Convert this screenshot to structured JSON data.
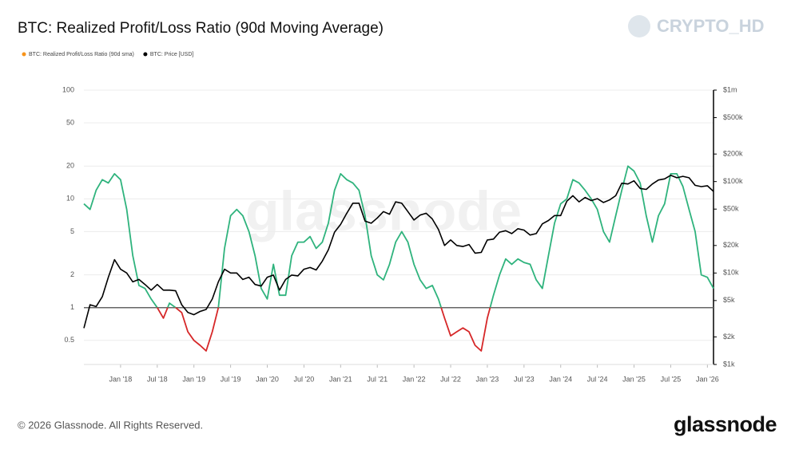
{
  "chart_data": {
    "type": "line",
    "title": "BTC: Realized Profit/Loss Ratio (90d Moving Average)",
    "watermark": "glassnode",
    "channel": "CRYPTO_HD",
    "footer": "© 2026 Glassnode. All Rights Reserved.",
    "logo": "glassnode",
    "log_scale": true,
    "grid": true,
    "threshold": 1,
    "threshold_color": "#666666",
    "xlim": [
      "2017-07",
      "2026-02"
    ],
    "xticks": [
      {
        "value": "2018-01",
        "label": "Jan '18"
      },
      {
        "value": "2018-07",
        "label": "Jul '18"
      },
      {
        "value": "2019-01",
        "label": "Jan '19"
      },
      {
        "value": "2019-07",
        "label": "Jul '19"
      },
      {
        "value": "2020-01",
        "label": "Jan '20"
      },
      {
        "value": "2020-07",
        "label": "Jul '20"
      },
      {
        "value": "2021-01",
        "label": "Jan '21"
      },
      {
        "value": "2021-07",
        "label": "Jul '21"
      },
      {
        "value": "2022-01",
        "label": "Jan '22"
      },
      {
        "value": "2022-07",
        "label": "Jul '22"
      },
      {
        "value": "2023-01",
        "label": "Jan '23"
      },
      {
        "value": "2023-07",
        "label": "Jul '23"
      },
      {
        "value": "2024-01",
        "label": "Jan '24"
      },
      {
        "value": "2024-07",
        "label": "Jul '24"
      },
      {
        "value": "2025-01",
        "label": "Jan '25"
      },
      {
        "value": "2025-07",
        "label": "Jul '25"
      },
      {
        "value": "2026-01",
        "label": "Jan '26"
      }
    ],
    "ylim": [
      0.3,
      100
    ],
    "yticks": [
      100,
      50,
      20,
      10,
      5,
      2,
      1,
      0.5
    ],
    "y2lim": [
      1000,
      1000000
    ],
    "y2ticks": [
      {
        "value": 1000000,
        "label": "$1m"
      },
      {
        "value": 500000,
        "label": "$500k"
      },
      {
        "value": 200000,
        "label": "$200k"
      },
      {
        "value": 100000,
        "label": "$100k"
      },
      {
        "value": 50000,
        "label": "$50k"
      },
      {
        "value": 20000,
        "label": "$20k"
      },
      {
        "value": 10000,
        "label": "$10k"
      },
      {
        "value": 5000,
        "label": "$5k"
      },
      {
        "value": 2000,
        "label": "$2k"
      },
      {
        "value": 1000,
        "label": "$1k"
      }
    ],
    "x": [
      "2017-07",
      "2017-08",
      "2017-09",
      "2017-10",
      "2017-11",
      "2017-12",
      "2018-01",
      "2018-02",
      "2018-03",
      "2018-04",
      "2018-05",
      "2018-06",
      "2018-07",
      "2018-08",
      "2018-09",
      "2018-10",
      "2018-11",
      "2018-12",
      "2019-01",
      "2019-02",
      "2019-03",
      "2019-04",
      "2019-05",
      "2019-06",
      "2019-07",
      "2019-08",
      "2019-09",
      "2019-10",
      "2019-11",
      "2019-12",
      "2020-01",
      "2020-02",
      "2020-03",
      "2020-04",
      "2020-05",
      "2020-06",
      "2020-07",
      "2020-08",
      "2020-09",
      "2020-10",
      "2020-11",
      "2020-12",
      "2021-01",
      "2021-02",
      "2021-03",
      "2021-04",
      "2021-05",
      "2021-06",
      "2021-07",
      "2021-08",
      "2021-09",
      "2021-10",
      "2021-11",
      "2021-12",
      "2022-01",
      "2022-02",
      "2022-03",
      "2022-04",
      "2022-05",
      "2022-06",
      "2022-07",
      "2022-08",
      "2022-09",
      "2022-10",
      "2022-11",
      "2022-12",
      "2023-01",
      "2023-02",
      "2023-03",
      "2023-04",
      "2023-05",
      "2023-06",
      "2023-07",
      "2023-08",
      "2023-09",
      "2023-10",
      "2023-11",
      "2023-12",
      "2024-01",
      "2024-02",
      "2024-03",
      "2024-04",
      "2024-05",
      "2024-06",
      "2024-07",
      "2024-08",
      "2024-09",
      "2024-10",
      "2024-11",
      "2024-12",
      "2025-01",
      "2025-02",
      "2025-03",
      "2025-04",
      "2025-05",
      "2025-06",
      "2025-07",
      "2025-08",
      "2025-09",
      "2025-10",
      "2025-11",
      "2025-12",
      "2026-01",
      "2026-02"
    ],
    "series": [
      {
        "name": "BTC: Realized Profit/Loss Ratio (90d sma)",
        "color": "#2fb37d",
        "below_color": "#d62728",
        "legend_color": "#f7931a",
        "axis": "y",
        "values": [
          9,
          8,
          12,
          15,
          14,
          17,
          15,
          8,
          3,
          1.6,
          1.5,
          1.2,
          1.0,
          0.8,
          1.1,
          1.0,
          0.9,
          0.6,
          0.5,
          0.45,
          0.4,
          0.6,
          1.0,
          3.5,
          7,
          8,
          7,
          5,
          3,
          1.5,
          1.2,
          2.5,
          1.3,
          1.3,
          3,
          4,
          4,
          4.5,
          3.5,
          4,
          6,
          12,
          17,
          15,
          14,
          12,
          7,
          3,
          2,
          1.8,
          2.5,
          4,
          5,
          4,
          2.5,
          1.8,
          1.5,
          1.6,
          1.2,
          0.8,
          0.55,
          0.6,
          0.65,
          0.6,
          0.45,
          0.4,
          0.8,
          1.3,
          2,
          2.8,
          2.5,
          2.8,
          2.6,
          2.5,
          1.8,
          1.5,
          3,
          6,
          9,
          10,
          15,
          14,
          12,
          10,
          8,
          5,
          4,
          7,
          12,
          20,
          18,
          14,
          7,
          4,
          7,
          9,
          17,
          17,
          13,
          8,
          5,
          2,
          1.9,
          1.5
        ]
      },
      {
        "name": "BTC: Price [USD]",
        "color": "#000000",
        "axis": "y2",
        "values": [
          2500,
          4500,
          4300,
          5500,
          9000,
          14000,
          11000,
          10000,
          8000,
          8500,
          7500,
          6500,
          7500,
          6500,
          6500,
          6400,
          4500,
          3700,
          3500,
          3800,
          4000,
          5200,
          8000,
          11000,
          10000,
          10000,
          8500,
          9000,
          7500,
          7200,
          9000,
          9500,
          6500,
          8500,
          9500,
          9300,
          11000,
          11500,
          10800,
          13500,
          18000,
          28000,
          34000,
          45000,
          58000,
          58000,
          37000,
          35000,
          40000,
          47000,
          44000,
          60000,
          58000,
          47000,
          38000,
          43000,
          45000,
          39000,
          30000,
          20000,
          23000,
          20000,
          19500,
          20500,
          16500,
          16800,
          23000,
          23500,
          28000,
          29000,
          27000,
          30500,
          29500,
          26000,
          27000,
          34500,
          37500,
          42500,
          42500,
          61000,
          70000,
          60000,
          67000,
          62000,
          65000,
          59000,
          63000,
          70000,
          96000,
          94000,
          102000,
          84000,
          82000,
          94000,
          104000,
          107000,
          117000,
          110000,
          114000,
          110000,
          91000,
          88000,
          90000,
          78000
        ]
      }
    ]
  }
}
